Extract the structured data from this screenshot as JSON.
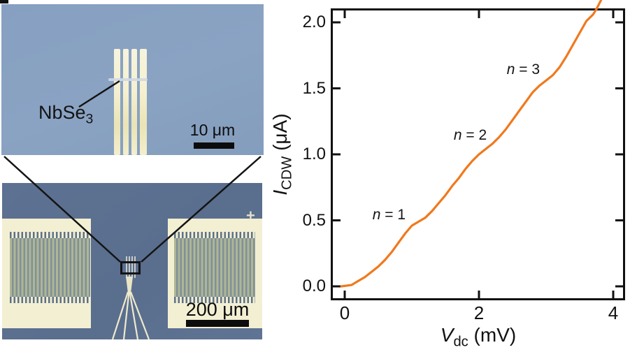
{
  "figure": {
    "top_micrograph": {
      "label_main": "NbSe",
      "label_sub": "3",
      "scale_bar": "10 μm"
    },
    "bottom_micrograph": {
      "scale_bar": "200 μm",
      "crosshair": "+"
    }
  },
  "chart_data": {
    "type": "line",
    "title": "",
    "xlabel_var": "V",
    "xlabel_sub": "dc",
    "xlabel_unit": " (mV)",
    "ylabel_var": "I",
    "ylabel_sub": "CDW",
    "ylabel_unit": " (μA)",
    "xlim": [
      -0.2,
      4.17
    ],
    "ylim": [
      -0.1,
      2.1
    ],
    "xticks": {
      "values": [
        0,
        2,
        4
      ],
      "labels": [
        "0",
        "2",
        "4"
      ]
    },
    "yticks": {
      "values": [
        0,
        0.5,
        1,
        1.5,
        2
      ],
      "labels": [
        "0.0",
        "0.5",
        "1.0",
        "1.5",
        "2.0"
      ]
    },
    "grid": false,
    "legend": "none",
    "line_color": "#f0791d",
    "frame_color": "#111111",
    "annotations": [
      {
        "var": "n",
        "rest": " = 1",
        "x": 0.66,
        "y": 0.53
      },
      {
        "var": "n",
        "rest": " = 2",
        "x": 1.87,
        "y": 1.13
      },
      {
        "var": "n",
        "rest": " = 3",
        "x": 2.66,
        "y": 1.63
      }
    ],
    "series": [
      {
        "name": "ICDW",
        "x": [
          -0.05,
          0.1,
          0.2,
          0.3,
          0.4,
          0.5,
          0.6,
          0.7,
          0.8,
          0.9,
          1.0,
          1.1,
          1.2,
          1.3,
          1.4,
          1.5,
          1.6,
          1.7,
          1.8,
          1.9,
          2.0,
          2.1,
          2.2,
          2.3,
          2.4,
          2.5,
          2.6,
          2.7,
          2.8,
          2.9,
          3.0,
          3.1,
          3.2,
          3.3,
          3.4,
          3.5,
          3.6,
          3.7,
          3.75,
          3.82
        ],
        "y": [
          0.0,
          0.01,
          0.04,
          0.07,
          0.11,
          0.15,
          0.2,
          0.26,
          0.33,
          0.4,
          0.46,
          0.49,
          0.52,
          0.57,
          0.63,
          0.69,
          0.76,
          0.82,
          0.89,
          0.95,
          1.0,
          1.04,
          1.08,
          1.13,
          1.19,
          1.26,
          1.33,
          1.4,
          1.47,
          1.52,
          1.56,
          1.6,
          1.66,
          1.74,
          1.83,
          1.92,
          2.01,
          2.06,
          2.1,
          2.17
        ]
      }
    ]
  }
}
